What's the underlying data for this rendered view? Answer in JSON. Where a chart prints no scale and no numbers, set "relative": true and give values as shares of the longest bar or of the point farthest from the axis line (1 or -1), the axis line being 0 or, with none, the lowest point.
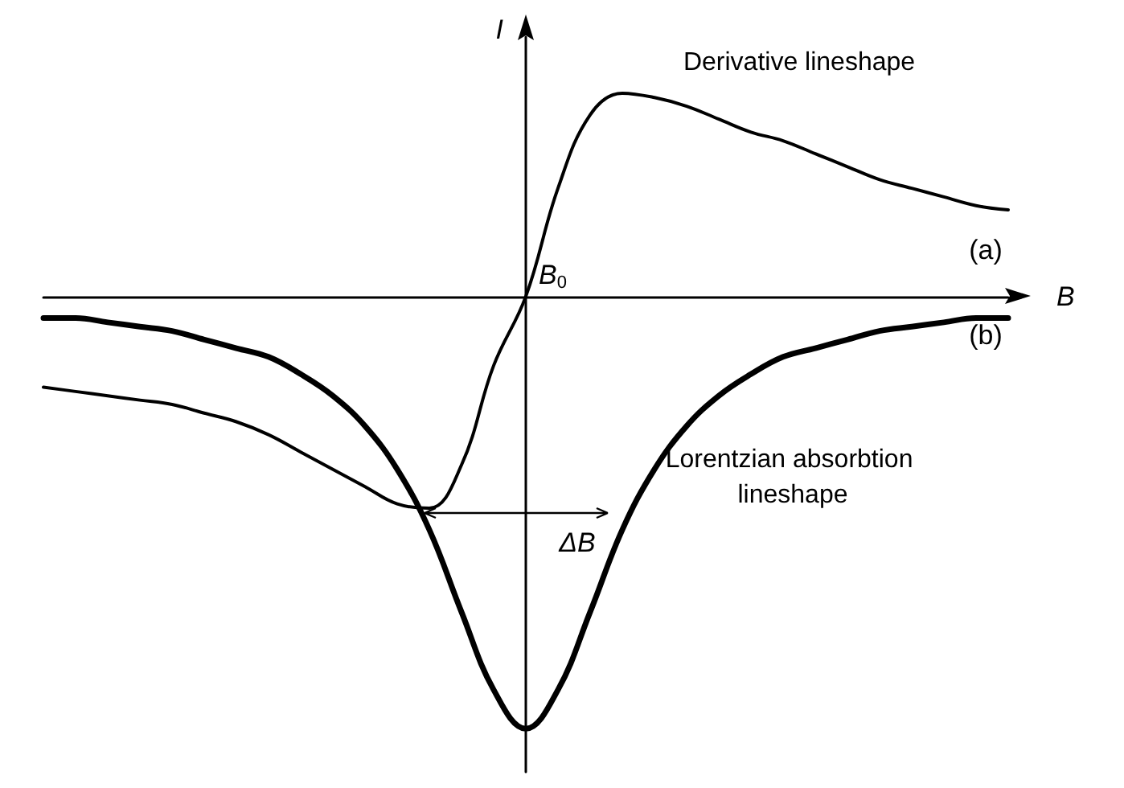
{
  "chart_data": {
    "type": "line",
    "relative": true,
    "xlabel": "B",
    "ylabel": "I",
    "categories": [
      null,
      null,
      null,
      null,
      null,
      null,
      null,
      null,
      null,
      null,
      null,
      null,
      null,
      null,
      null,
      null,
      null,
      null,
      null,
      null,
      null,
      null,
      null,
      null,
      null,
      null,
      null,
      null,
      null,
      null,
      null
    ],
    "series": [
      {
        "name": "Derivative lineshape",
        "color": "#000000",
        "values": [
          -0.21,
          -0.22,
          -0.23,
          -0.24,
          -0.25,
          -0.27,
          -0.29,
          -0.32,
          -0.36,
          -0.4,
          -0.44,
          -0.48,
          -0.49,
          -0.39,
          -0.16,
          0,
          0.25,
          0.42,
          0.47,
          0.46,
          0.44,
          0.41,
          0.38,
          0.36,
          0.33,
          0.3,
          0.27,
          0.25,
          0.23,
          0.21,
          0.2
        ]
      },
      {
        "name": "Lorentzian absorbtion lineshape",
        "color": "#000000",
        "values": [
          -0.05,
          -0.05,
          -0.06,
          -0.07,
          -0.08,
          -0.1,
          -0.12,
          -0.14,
          -0.18,
          -0.23,
          -0.3,
          -0.4,
          -0.54,
          -0.73,
          -0.91,
          -1,
          -0.91,
          -0.73,
          -0.54,
          -0.4,
          -0.3,
          -0.23,
          -0.18,
          -0.14,
          -0.12,
          -0.1,
          -0.08,
          -0.07,
          -0.06,
          -0.05,
          -0.05
        ]
      }
    ],
    "annotations": [
      "(a)",
      "(b)",
      "B$_{0}$",
      "ΔB"
    ],
    "legend": false,
    "grid": false,
    "marker": "none",
    "line_style": "solid"
  }
}
